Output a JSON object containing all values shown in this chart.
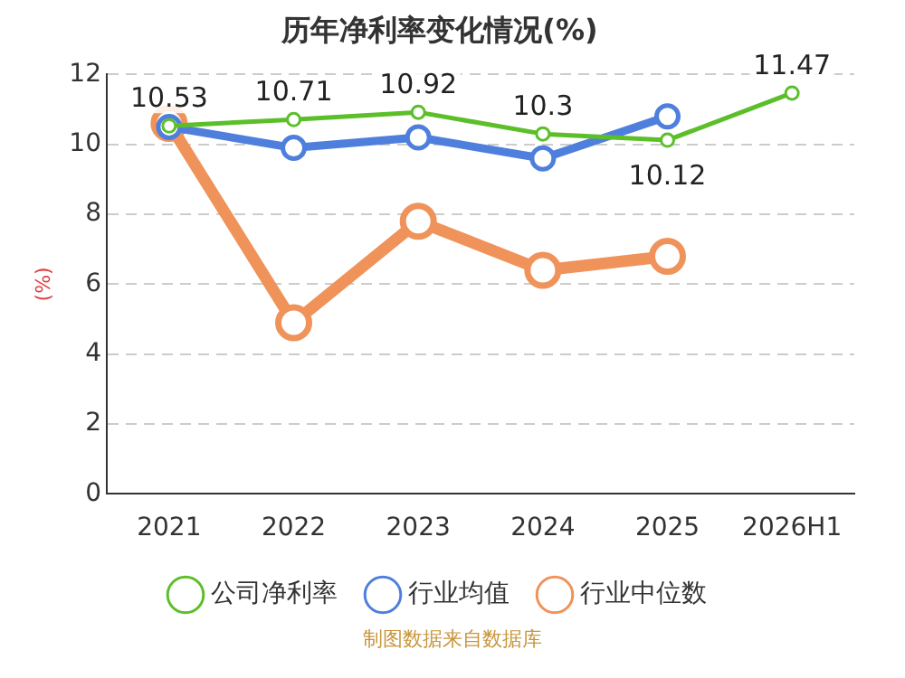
{
  "chart_data": {
    "type": "line",
    "title": "历年净利率变化情况(%)",
    "ylabel": "(%)",
    "categories": [
      "2021",
      "2022",
      "2023",
      "2024",
      "2025",
      "2026H1"
    ],
    "series": [
      {
        "name": "公司净利率",
        "color": "#5cbf2a",
        "values": [
          10.53,
          10.71,
          10.92,
          10.3,
          10.12,
          11.47
        ],
        "value_labels": [
          "10.53",
          "10.71",
          "10.92",
          "10.3",
          "10.12",
          "11.47"
        ]
      },
      {
        "name": "行业均值",
        "color": "#4f7fdc",
        "values": [
          10.5,
          9.9,
          10.2,
          9.6,
          10.8,
          null
        ]
      },
      {
        "name": "行业中位数",
        "color": "#f0935a",
        "values": [
          10.6,
          4.9,
          7.8,
          6.4,
          6.8,
          null
        ]
      }
    ],
    "ylim": [
      0,
      12
    ],
    "yticks": [
      0,
      2,
      4,
      6,
      8,
      10,
      12
    ],
    "grid": "y",
    "legend": "bottom",
    "marker": "circle",
    "line_style": "solid",
    "annotations": [
      "制图数据来自数据库"
    ]
  }
}
